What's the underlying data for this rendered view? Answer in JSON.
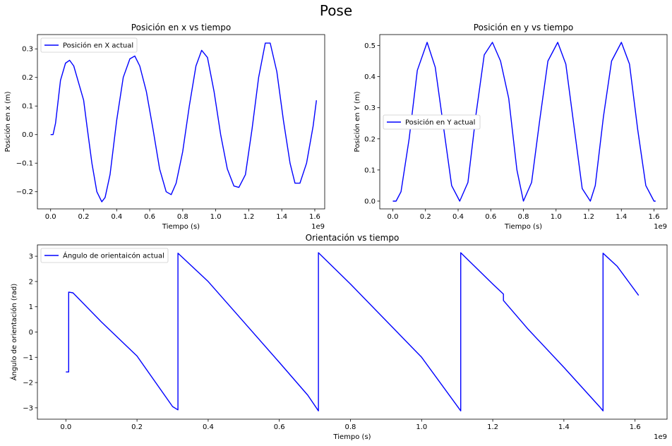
{
  "figure": {
    "suptitle": "Pose"
  },
  "chart_data": [
    {
      "type": "line",
      "title": "Posición en x vs tiempo",
      "xlabel": "Tiempo (s)",
      "ylabel": "Posición en x (m)",
      "x_offset_label": "1e9",
      "xlim": [
        -0.08,
        1.66
      ],
      "ylim": [
        -0.26,
        0.35
      ],
      "xticks": [
        0.0,
        0.2,
        0.4,
        0.6,
        0.8,
        1.0,
        1.2,
        1.4,
        1.6
      ],
      "xtick_labels": [
        "0.0",
        "0.2",
        "0.4",
        "0.6",
        "0.8",
        "1.0",
        "1.2",
        "1.4",
        "1.6"
      ],
      "yticks": [
        -0.2,
        -0.1,
        0.0,
        0.1,
        0.2,
        0.3
      ],
      "ytick_labels": [
        "−0.2",
        "−0.1",
        "0.0",
        "0.1",
        "0.2",
        "0.3"
      ],
      "grid": false,
      "legend": "top-left",
      "color": "#0000ff",
      "series": [
        {
          "name": "Posición en X actual",
          "x": [
            0.0,
            0.015,
            0.03,
            0.06,
            0.09,
            0.115,
            0.14,
            0.17,
            0.2,
            0.22,
            0.25,
            0.28,
            0.31,
            0.33,
            0.36,
            0.4,
            0.44,
            0.48,
            0.51,
            0.54,
            0.58,
            0.62,
            0.66,
            0.7,
            0.73,
            0.76,
            0.8,
            0.84,
            0.88,
            0.915,
            0.95,
            0.99,
            1.03,
            1.07,
            1.11,
            1.14,
            1.18,
            1.22,
            1.26,
            1.3,
            1.33,
            1.37,
            1.41,
            1.45,
            1.48,
            1.51,
            1.55,
            1.59,
            1.61
          ],
          "y": [
            0.0,
            0.0,
            0.04,
            0.19,
            0.25,
            0.26,
            0.24,
            0.18,
            0.12,
            0.03,
            -0.1,
            -0.2,
            -0.235,
            -0.22,
            -0.14,
            0.05,
            0.2,
            0.265,
            0.275,
            0.24,
            0.15,
            0.02,
            -0.12,
            -0.2,
            -0.21,
            -0.17,
            -0.06,
            0.1,
            0.24,
            0.295,
            0.27,
            0.15,
            0.0,
            -0.12,
            -0.18,
            -0.185,
            -0.14,
            0.02,
            0.2,
            0.32,
            0.32,
            0.22,
            0.05,
            -0.1,
            -0.17,
            -0.17,
            -0.1,
            0.03,
            0.12
          ]
        }
      ]
    },
    {
      "type": "line",
      "title": "Posición en y vs tiempo",
      "xlabel": "Tiempo (s)",
      "ylabel": "Posición en Y (m)",
      "x_offset_label": "1e9",
      "xlim": [
        -0.08,
        1.68
      ],
      "ylim": [
        -0.025,
        0.535
      ],
      "xticks": [
        0.0,
        0.2,
        0.4,
        0.6,
        0.8,
        1.0,
        1.2,
        1.4,
        1.6
      ],
      "xtick_labels": [
        "0.0",
        "0.2",
        "0.4",
        "0.6",
        "0.8",
        "1.0",
        "1.2",
        "1.4",
        "1.6"
      ],
      "yticks": [
        0.0,
        0.1,
        0.2,
        0.3,
        0.4,
        0.5
      ],
      "ytick_labels": [
        "0.0",
        "0.1",
        "0.2",
        "0.3",
        "0.4",
        "0.5"
      ],
      "grid": false,
      "legend": "center-left",
      "color": "#0000ff",
      "series": [
        {
          "name": "Posición en Y actual",
          "x": [
            0.0,
            0.02,
            0.05,
            0.1,
            0.15,
            0.21,
            0.26,
            0.31,
            0.36,
            0.41,
            0.46,
            0.51,
            0.56,
            0.61,
            0.66,
            0.71,
            0.76,
            0.8,
            0.85,
            0.9,
            0.95,
            1.01,
            1.06,
            1.11,
            1.16,
            1.21,
            1.24,
            1.29,
            1.34,
            1.4,
            1.45,
            1.5,
            1.55,
            1.6,
            1.61
          ],
          "y": [
            0.0,
            0.0,
            0.03,
            0.2,
            0.42,
            0.51,
            0.43,
            0.24,
            0.05,
            0.0,
            0.06,
            0.28,
            0.47,
            0.51,
            0.45,
            0.33,
            0.1,
            0.0,
            0.06,
            0.26,
            0.45,
            0.51,
            0.44,
            0.24,
            0.04,
            0.0,
            0.05,
            0.27,
            0.45,
            0.51,
            0.44,
            0.23,
            0.05,
            0.0,
            0.0
          ]
        }
      ]
    },
    {
      "type": "line",
      "title": "Orientación vs tiempo",
      "xlabel": "Tiempo (s)",
      "ylabel": "Ángulo de orientación (rad)",
      "x_offset_label": "1e9",
      "xlim": [
        -0.08,
        1.69
      ],
      "ylim": [
        -3.45,
        3.45
      ],
      "xticks": [
        0.0,
        0.2,
        0.4,
        0.6,
        0.8,
        1.0,
        1.2,
        1.4,
        1.6
      ],
      "xtick_labels": [
        "0.0",
        "0.2",
        "0.4",
        "0.6",
        "0.8",
        "1.0",
        "1.2",
        "1.4",
        "1.6"
      ],
      "yticks": [
        -3,
        -2,
        -1,
        0,
        1,
        2,
        3
      ],
      "ytick_labels": [
        "−3",
        "−2",
        "−1",
        "0",
        "1",
        "2",
        "3"
      ],
      "grid": false,
      "legend": "top-left",
      "color": "#0000ff",
      "series": [
        {
          "name": "Ángulo de orientaicón actual",
          "x": [
            0.0,
            0.008,
            0.008,
            0.02,
            0.1,
            0.2,
            0.3,
            0.315,
            0.315,
            0.4,
            0.5,
            0.6,
            0.68,
            0.71,
            0.71,
            0.8,
            0.9,
            1.0,
            1.11,
            1.11,
            1.2,
            1.23,
            1.23,
            1.3,
            1.4,
            1.5,
            1.51,
            1.51,
            1.55,
            1.61
          ],
          "y": [
            -1.58,
            -1.58,
            1.58,
            1.55,
            0.4,
            -0.95,
            -2.95,
            -3.08,
            3.12,
            2.0,
            0.4,
            -1.2,
            -2.5,
            -3.12,
            3.14,
            1.9,
            0.45,
            -1.0,
            -3.12,
            3.14,
            1.9,
            1.5,
            1.25,
            0.1,
            -1.4,
            -2.95,
            -3.12,
            3.12,
            2.6,
            1.45
          ]
        }
      ]
    }
  ]
}
